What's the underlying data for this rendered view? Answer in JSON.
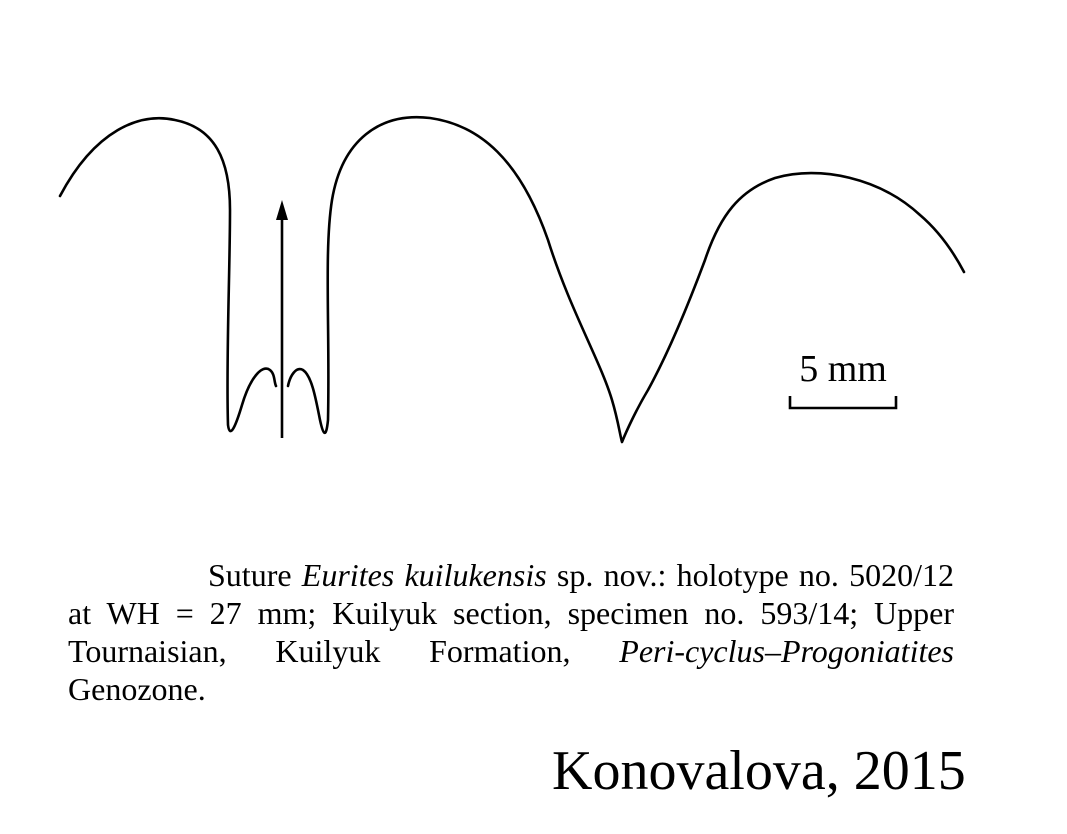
{
  "diagram": {
    "type": "ammonoid suture line drawing",
    "line_color": "#000000",
    "background": "#ffffff",
    "scale_bar_label": "5 mm",
    "arrow_meaning": "venter direction (ventral midline)"
  },
  "caption": {
    "p1": "Suture ",
    "genus_species": "Eurites kuilukensis",
    "p2": " sp. nov.: holotype no. 5020/12 at WH = 27 mm; Kuilyuk section, specimen no. 593/14; Upper Tournaisian, Kuilyuk Formation, ",
    "zone_italic": "Peri-cyclus–Progoniatites",
    "p3": " Genozone."
  },
  "credit": "Konovalova, 2015"
}
